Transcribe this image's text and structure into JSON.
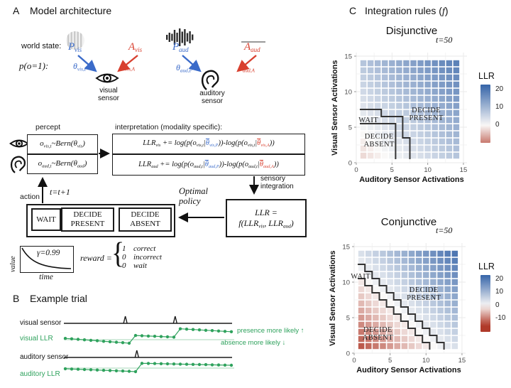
{
  "colors": {
    "math_blue": "#3b6bc9",
    "math_red": "#d8402f",
    "green": "#2fa25d",
    "green_light": "#b9dfc6",
    "heat_blue": "#3564a8",
    "heat_red": "#b03a2a",
    "boundary": "#333333"
  },
  "panelA": {
    "letter": "A",
    "title": "Model architecture",
    "world_state_label": "world state:",
    "prob_label_tokens": [
      {
        "t": "p(o=1):"
      }
    ],
    "vis_present_tokens": [
      {
        "t": "P"
      },
      {
        "t": "vis",
        "c": "sub"
      }
    ],
    "vis_absent_tokens": [
      {
        "t": "A"
      },
      {
        "t": "vis",
        "c": "sub"
      }
    ],
    "vis_theta_p_tokens": [
      {
        "t": "θ"
      },
      {
        "t": "vis,P",
        "c": "sub"
      }
    ],
    "vis_theta_a_tokens": [
      {
        "t": "θ"
      },
      {
        "t": "vis,A",
        "c": "sub"
      }
    ],
    "aud_present_tokens": [
      {
        "t": "P"
      },
      {
        "t": "aud",
        "c": "sub"
      }
    ],
    "aud_absent_tokens": [
      {
        "t": "A"
      },
      {
        "t": "aud",
        "c": "sub"
      }
    ],
    "aud_theta_p_tokens": [
      {
        "t": "θ"
      },
      {
        "t": "aud,P",
        "c": "sub"
      }
    ],
    "aud_theta_a_tokens": [
      {
        "t": "θ"
      },
      {
        "t": "aud,A",
        "c": "sub"
      }
    ],
    "visual_sensor_label": "visual sensor",
    "auditory_sensor_label": "auditory sensor",
    "percept_label": "percept",
    "percept_vis_tokens": [
      {
        "t": "o"
      },
      {
        "t": "vis,t",
        "c": "sub"
      },
      {
        "t": "~Bern(θ"
      },
      {
        "t": "vis",
        "c": "sub"
      },
      {
        "t": ")"
      }
    ],
    "percept_aud_tokens": [
      {
        "t": "o"
      },
      {
        "t": "aud,t",
        "c": "sub"
      },
      {
        "t": "~Bern(θ"
      },
      {
        "t": "aud",
        "c": "sub"
      },
      {
        "t": ")"
      }
    ],
    "interp_label": "interpretation (modality specific):",
    "interp_vis_tokens": [
      {
        "t": "LLR"
      },
      {
        "t": "vis",
        "c": "sub"
      },
      {
        "t": " += log(p(o"
      },
      {
        "t": "vis,t",
        "c": "sub"
      },
      {
        "t": "|"
      },
      {
        "t": "θ",
        "c": "bar blue"
      },
      {
        "t": "vis,P",
        "c": "sub blue"
      },
      {
        "t": "))-log(p(o"
      },
      {
        "t": "vis,t",
        "c": "sub"
      },
      {
        "t": "|"
      },
      {
        "t": "θ",
        "c": "bar red"
      },
      {
        "t": "vis,A",
        "c": "sub red"
      },
      {
        "t": "))"
      }
    ],
    "interp_aud_tokens": [
      {
        "t": "LLR"
      },
      {
        "t": "aud",
        "c": "sub"
      },
      {
        "t": " += log(p(o"
      },
      {
        "t": "aud,t",
        "c": "sub"
      },
      {
        "t": "|"
      },
      {
        "t": "θ",
        "c": "bar blue"
      },
      {
        "t": "aud,P",
        "c": "sub blue"
      },
      {
        "t": "))-log(p(o"
      },
      {
        "t": "aud,t",
        "c": "sub"
      },
      {
        "t": "|"
      },
      {
        "t": "θ",
        "c": "bar red"
      },
      {
        "t": "aud,A",
        "c": "sub red"
      },
      {
        "t": "))"
      }
    ],
    "sensory_integration_label": "sensory integration",
    "llr_line1_tokens": [
      {
        "t": "LLR ="
      }
    ],
    "llr_line2_tokens": [
      {
        "t": "f(LLR"
      },
      {
        "t": "vis",
        "c": "sub"
      },
      {
        "t": ", LLR"
      },
      {
        "t": "aud",
        "c": "sub"
      },
      {
        "t": ")"
      }
    ],
    "optimal_policy_label": "Optimal policy",
    "action_label": "action",
    "time_update_tokens": [
      {
        "t": "t=t+1"
      }
    ],
    "policy": {
      "wait": "WAIT",
      "present_line1": "DECIDE",
      "present_line2": "PRESENT",
      "absent_line1": "DECIDE",
      "absent_line2": "ABSENT"
    },
    "value_plot": {
      "ylabel": "value",
      "xlabel": "time",
      "gamma_tokens": [
        {
          "t": "γ=0.99"
        }
      ]
    },
    "reward": {
      "label_tokens": [
        {
          "t": "reward ="
        }
      ],
      "rows": [
        {
          "v": "1",
          "k": "correct"
        },
        {
          "v": "0",
          "k": "incorrect"
        },
        {
          "v": "0",
          "k": "wait"
        }
      ]
    }
  },
  "panelB": {
    "letter": "B",
    "title": "Example trial",
    "row_labels": {
      "visual_sensor": "visual sensor",
      "visual_llr": "visual LLR",
      "auditory_sensor": "auditory sensor",
      "auditory_llr": "auditory LLR"
    },
    "annotation_up": "presence more likely ↑",
    "annotation_down": "absence more likely ↓"
  },
  "panelC": {
    "letter": "C",
    "title_tokens": [
      {
        "t": "Integration rules ("
      },
      {
        "t": "f",
        "c": "it serif"
      },
      {
        "t": ")"
      }
    ]
  },
  "chart_data": [
    {
      "type": "heatmap",
      "title": "Disjunctive",
      "time_label": "t=50",
      "xlabel": "Auditory Sensor Activations",
      "ylabel": "Visual Sensor Activations",
      "xticks": [
        0,
        5,
        10,
        15
      ],
      "yticks": [
        0,
        5,
        10,
        15
      ],
      "xlim": [
        0,
        15.5
      ],
      "ylim": [
        0,
        15.5
      ],
      "cell_centers": [
        1,
        2,
        3,
        4,
        5,
        6,
        7,
        8,
        9,
        10,
        11,
        12,
        13,
        14
      ],
      "llr_rows_bottom_up": [
        [
          -2.4,
          -1.6,
          -0.8,
          0,
          0.8,
          1.6,
          2.4,
          3.2,
          4,
          4.8,
          5.6,
          6.4,
          7.2,
          8
        ],
        [
          -1.6,
          -0.8,
          0,
          0.8,
          1.6,
          2.4,
          3.2,
          4,
          4.8,
          5.6,
          6.4,
          7.2,
          8,
          8.8
        ],
        [
          -0.8,
          0,
          0.8,
          1.6,
          2.4,
          3.2,
          4,
          4.8,
          5.6,
          6.4,
          7.2,
          8,
          8.8,
          9.6
        ],
        [
          0,
          0.8,
          1.6,
          2.4,
          3.2,
          4,
          4.8,
          5.6,
          6.4,
          7.2,
          8,
          8.8,
          9.6,
          10.4
        ],
        [
          0.8,
          1.6,
          2.4,
          3.2,
          4,
          4.8,
          5.6,
          6.4,
          7.2,
          8,
          8.8,
          9.6,
          10.4,
          11.2
        ],
        [
          1.6,
          2.4,
          3.2,
          4,
          4.8,
          5.6,
          6.4,
          7.2,
          8,
          8.8,
          9.6,
          10.4,
          11.2,
          12
        ],
        [
          2.4,
          3.2,
          4,
          4.8,
          5.6,
          6.4,
          7.2,
          8,
          8.8,
          9.6,
          10.4,
          11.2,
          12,
          12.8
        ],
        [
          3.2,
          4,
          4.8,
          5.6,
          6.4,
          7.2,
          8,
          8.8,
          9.6,
          10.4,
          11.2,
          12,
          12.8,
          13.6
        ],
        [
          4,
          4.8,
          5.6,
          6.4,
          7.2,
          8,
          8.8,
          9.6,
          10.4,
          11.2,
          12,
          12.8,
          13.6,
          14.4
        ],
        [
          4.8,
          5.6,
          6.4,
          7.2,
          8,
          8.8,
          9.6,
          10.4,
          11.2,
          12,
          12.8,
          13.6,
          14.4,
          15.2
        ],
        [
          5.6,
          6.4,
          7.2,
          8,
          8.8,
          9.6,
          10.4,
          11.2,
          12,
          12.8,
          13.6,
          14.4,
          15.2,
          16
        ],
        [
          6.4,
          7.2,
          8,
          8.8,
          9.6,
          10.4,
          11.2,
          12,
          12.8,
          13.6,
          14.4,
          15.2,
          16,
          16.8
        ],
        [
          7.2,
          8,
          8.8,
          9.6,
          10.4,
          11.2,
          12,
          12.8,
          13.6,
          14.4,
          15.2,
          16,
          16.8,
          17.6
        ],
        [
          8,
          8.8,
          9.6,
          10.4,
          11.2,
          12,
          12.8,
          13.6,
          14.4,
          15.2,
          16,
          16.8,
          17.6,
          18.4
        ]
      ],
      "color_scale": {
        "min": -15,
        "max": 23
      },
      "legend": {
        "title": "LLR",
        "ticks": [
          20,
          10,
          0
        ],
        "bar_top_value": 23,
        "bar_bottom_value": -10
      },
      "regions": [
        {
          "lines": [
            "WAIT"
          ],
          "x": 1.7,
          "y": 6.0
        },
        {
          "lines": [
            "DECIDE",
            "PRESENT"
          ],
          "x": 9.8,
          "y": 6.9
        },
        {
          "lines": [
            "DECIDE",
            "ABSENT"
          ],
          "x": 3.2,
          "y": 3.2
        }
      ],
      "boundaries": [
        [
          [
            0.5,
            7.5
          ],
          [
            3.5,
            7.5
          ],
          [
            3.5,
            6.5
          ],
          [
            6.5,
            6.5
          ],
          [
            6.5,
            3.5
          ],
          [
            7.5,
            3.5
          ],
          [
            7.5,
            0.5
          ]
        ],
        [
          [
            0.5,
            5.5
          ],
          [
            5.5,
            5.5
          ],
          [
            5.5,
            0.5
          ]
        ]
      ]
    },
    {
      "type": "heatmap",
      "title": "Conjunctive",
      "time_label": "t=50",
      "xlabel": "Auditory Sensor Activations",
      "ylabel": "Visual Sensor Activations",
      "xticks": [
        0,
        5,
        10,
        15
      ],
      "yticks": [
        0,
        5,
        10,
        15
      ],
      "xlim": [
        0,
        15.5
      ],
      "ylim": [
        0,
        15.5
      ],
      "cell_centers": [
        1,
        2,
        3,
        4,
        5,
        6,
        7,
        8,
        9,
        10,
        11,
        12,
        13,
        14
      ],
      "llr_rows_bottom_up": [
        [
          -12.5,
          -11.25,
          -10,
          -8.75,
          -7.5,
          -6.25,
          -5,
          -3.75,
          -2.5,
          -1.25,
          0,
          1.25,
          2.5,
          3.75
        ],
        [
          -11.25,
          -10,
          -8.75,
          -7.5,
          -6.25,
          -5,
          -3.75,
          -2.5,
          -1.25,
          0,
          1.25,
          2.5,
          3.75,
          5
        ],
        [
          -10,
          -8.75,
          -7.5,
          -6.25,
          -5,
          -3.75,
          -2.5,
          -1.25,
          0,
          1.25,
          2.5,
          3.75,
          5,
          6.25
        ],
        [
          -8.75,
          -7.5,
          -6.25,
          -5,
          -3.75,
          -2.5,
          -1.25,
          0,
          1.25,
          2.5,
          3.75,
          5,
          6.25,
          7.5
        ],
        [
          -7.5,
          -6.25,
          -5,
          -3.75,
          -2.5,
          -1.25,
          0,
          1.25,
          2.5,
          3.75,
          5,
          6.25,
          7.5,
          8.75
        ],
        [
          -6.25,
          -5,
          -3.75,
          -2.5,
          -1.25,
          0,
          1.25,
          2.5,
          3.75,
          5,
          6.25,
          7.5,
          8.75,
          10
        ],
        [
          -5,
          -3.75,
          -2.5,
          -1.25,
          0,
          1.25,
          2.5,
          3.75,
          5,
          6.25,
          7.5,
          8.75,
          10,
          11.25
        ],
        [
          -3.75,
          -2.5,
          -1.25,
          0,
          1.25,
          2.5,
          3.75,
          5,
          6.25,
          7.5,
          8.75,
          10,
          11.25,
          12.5
        ],
        [
          -2.5,
          -1.25,
          0,
          1.25,
          2.5,
          3.75,
          5,
          6.25,
          7.5,
          8.75,
          10,
          11.25,
          12.5,
          13.75
        ],
        [
          -1.25,
          0,
          1.25,
          2.5,
          3.75,
          5,
          6.25,
          7.5,
          8.75,
          10,
          11.25,
          12.5,
          13.75,
          15
        ],
        [
          0,
          1.25,
          2.5,
          3.75,
          5,
          6.25,
          7.5,
          8.75,
          10,
          11.25,
          12.5,
          13.75,
          15,
          16.25
        ],
        [
          1.25,
          2.5,
          3.75,
          5,
          6.25,
          7.5,
          8.75,
          10,
          11.25,
          12.5,
          13.75,
          15,
          16.25,
          17.5
        ],
        [
          2.5,
          3.75,
          5,
          6.25,
          7.5,
          8.75,
          10,
          11.25,
          12.5,
          13.75,
          15,
          16.25,
          17.5,
          18.75
        ],
        [
          3.75,
          5,
          6.25,
          7.5,
          8.75,
          10,
          11.25,
          12.5,
          13.75,
          15,
          16.25,
          17.5,
          18.75,
          20
        ]
      ],
      "color_scale": {
        "min": -15,
        "max": 23
      },
      "legend": {
        "title": "LLR",
        "ticks": [
          20,
          10,
          0,
          -10
        ],
        "bar_top_value": 23,
        "bar_bottom_value": -20
      },
      "regions": [
        {
          "lines": [
            "WAIT"
          ],
          "x": 0.9,
          "y": 10.8
        },
        {
          "lines": [
            "DECIDE",
            "PRESENT"
          ],
          "x": 9.7,
          "y": 8.4
        },
        {
          "lines": [
            "DECIDE",
            "ABSENT"
          ],
          "x": 3.3,
          "y": 2.8
        }
      ],
      "boundaries": [
        [
          [
            0.5,
            12.5
          ],
          [
            1.5,
            12.5
          ],
          [
            1.5,
            11.5
          ],
          [
            2.5,
            11.5
          ],
          [
            2.5,
            10.5
          ],
          [
            3.5,
            10.5
          ],
          [
            3.5,
            9.5
          ],
          [
            4.5,
            9.5
          ],
          [
            4.5,
            8.5
          ],
          [
            5.5,
            8.5
          ],
          [
            5.5,
            7.5
          ],
          [
            6.5,
            7.5
          ],
          [
            6.5,
            6.5
          ],
          [
            7.5,
            6.5
          ],
          [
            7.5,
            5.5
          ],
          [
            8.5,
            5.5
          ],
          [
            8.5,
            4.5
          ],
          [
            9.5,
            4.5
          ],
          [
            9.5,
            3.5
          ],
          [
            10.5,
            3.5
          ],
          [
            10.5,
            2.5
          ],
          [
            11.5,
            2.5
          ],
          [
            11.5,
            1.5
          ],
          [
            12.5,
            1.5
          ],
          [
            12.5,
            0.5
          ]
        ],
        [
          [
            0.5,
            10.5
          ],
          [
            1.5,
            10.5
          ],
          [
            1.5,
            9.5
          ],
          [
            2.5,
            9.5
          ],
          [
            2.5,
            8.5
          ],
          [
            3.5,
            8.5
          ],
          [
            3.5,
            7.5
          ],
          [
            4.5,
            7.5
          ],
          [
            4.5,
            6.5
          ],
          [
            5.5,
            6.5
          ],
          [
            5.5,
            5.5
          ],
          [
            6.5,
            5.5
          ],
          [
            6.5,
            4.5
          ],
          [
            7.5,
            4.5
          ],
          [
            7.5,
            3.5
          ],
          [
            8.5,
            3.5
          ],
          [
            8.5,
            2.5
          ],
          [
            9.5,
            2.5
          ],
          [
            9.5,
            1.5
          ],
          [
            10.5,
            1.5
          ],
          [
            10.5,
            0.5
          ]
        ]
      ]
    },
    {
      "type": "line",
      "title": "Example trial",
      "time_steps": 27,
      "series": [
        {
          "name": "visual sensor",
          "kind": "sensor",
          "spike_times": [
            10.4,
            18.2
          ]
        },
        {
          "name": "visual LLR",
          "kind": "llr",
          "values": [
            0.2,
            0.13,
            0.05,
            -0.02,
            -0.1,
            -0.17,
            -0.25,
            -0.32,
            -0.4,
            -0.47,
            -0.55,
            0.65,
            0.61,
            0.57,
            0.53,
            0.49,
            0.45,
            0.4,
            1.7,
            1.64,
            1.59,
            1.53,
            1.47,
            1.42,
            1.36,
            1.3,
            1.25
          ]
        },
        {
          "name": "auditory sensor",
          "kind": "sensor",
          "spike_times": [
            12.2
          ]
        },
        {
          "name": "auditory LLR",
          "kind": "llr",
          "values": [
            -0.1,
            -0.14,
            -0.18,
            -0.22,
            -0.26,
            -0.3,
            -0.34,
            -0.38,
            -0.42,
            -0.46,
            -0.5,
            -0.55,
            0.75,
            0.73,
            0.71,
            0.69,
            0.67,
            0.64,
            0.62,
            0.6,
            0.58,
            0.56,
            0.54,
            0.51,
            0.49,
            0.47,
            0.45
          ]
        }
      ],
      "baseline": 0
    }
  ]
}
